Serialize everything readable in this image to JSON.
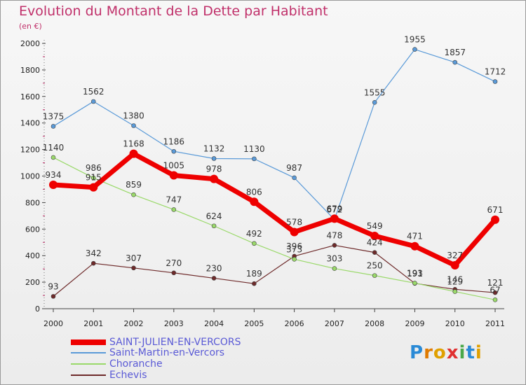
{
  "chart_data": {
    "type": "line",
    "title": "Evolution du Montant de la Dette par Habitant",
    "subtitle": "(en €)",
    "categories": [
      "2000",
      "2001",
      "2002",
      "2003",
      "2004",
      "2005",
      "2006",
      "2007",
      "2008",
      "2009",
      "2010",
      "2011"
    ],
    "ylim": [
      0,
      2000
    ],
    "yticks": [
      0,
      200,
      400,
      600,
      800,
      1000,
      1200,
      1400,
      1600,
      1800,
      2000
    ],
    "grid": false,
    "legend_position": "bottom-left",
    "series": [
      {
        "name": "SAINT-JULIEN-EN-VERCORS",
        "color": "#ee0000",
        "values": [
          934,
          915,
          1168,
          1005,
          978,
          806,
          578,
          679,
          549,
          471,
          327,
          671
        ]
      },
      {
        "name": "Saint-Martin-en-Vercors",
        "color": "#5a9ad8",
        "values": [
          1375,
          1562,
          1380,
          1186,
          1132,
          1130,
          987,
          672,
          1555,
          1955,
          1857,
          1712
        ]
      },
      {
        "name": "Choranche",
        "color": "#9ad96a",
        "values": [
          1140,
          986,
          859,
          747,
          624,
          492,
          373,
          303,
          250,
          193,
          129,
          67
        ]
      },
      {
        "name": "Echevis",
        "color": "#6e2a2a",
        "values": [
          93,
          342,
          307,
          270,
          230,
          189,
          396,
          478,
          424,
          191,
          146,
          121
        ]
      }
    ]
  },
  "logo": {
    "letters": [
      "P",
      "r",
      "o",
      "x",
      "i",
      "t",
      "i"
    ],
    "colors": [
      "#2a8ad6",
      "#e07b00",
      "#e0a000",
      "#e03030",
      "#4aa84a",
      "#2a8ad6",
      "#e0a000"
    ]
  }
}
